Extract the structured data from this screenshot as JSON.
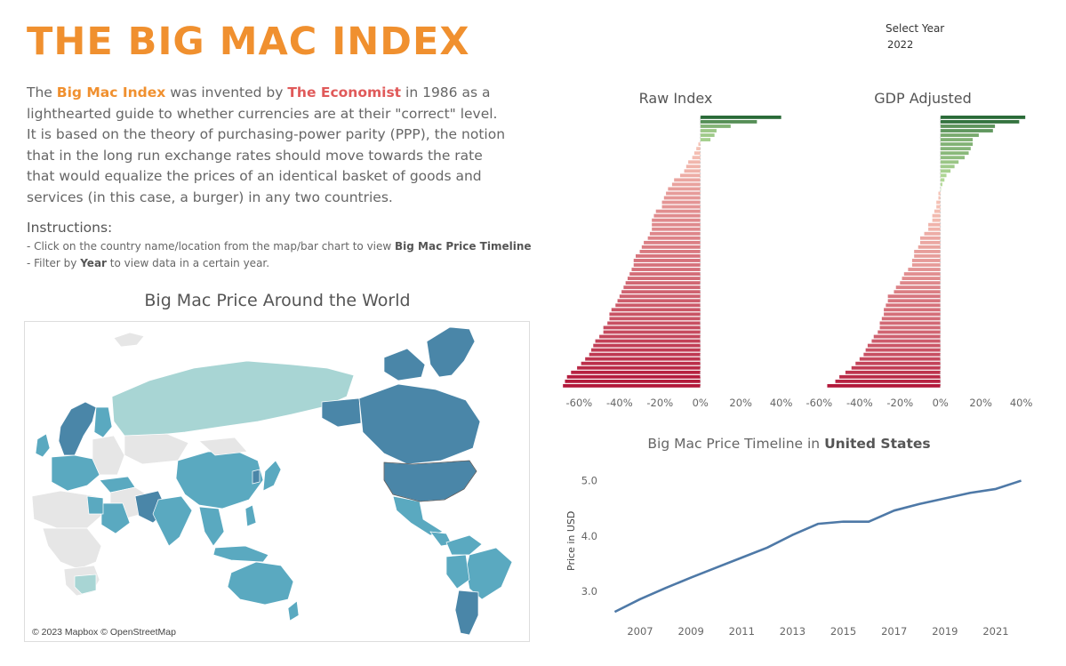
{
  "header": {
    "title": "THE BIG MAC INDEX",
    "intro_1": "The ",
    "intro_hl_1": "Big Mac Index",
    "intro_2": " was invented by ",
    "intro_hl_2": "The Economist",
    "intro_3": " in 1986 as a lighthearted guide to whether currencies are at their \"correct\" level. It is based on the theory of purchasing-power parity (PPP), the notion that in the long run exchange rates should move towards the rate that would equalize the prices of an identical basket of goods and services (in this case, a burger) in any two countries."
  },
  "instructions": {
    "heading": "Instructions:",
    "line1_text": "- Click on the country name/location from the map/bar chart to view ",
    "line1_bold": "Big Mac Price Timeline",
    "line2_prefix": "- Filter by ",
    "line2_bold": "Year",
    "line2_suffix": " to view data in a certain year."
  },
  "filter": {
    "label": "Select Year",
    "value": "2022"
  },
  "map": {
    "title": "Big Mac Price Around the World",
    "credit": "© 2023 Mapbox © OpenStreetMap",
    "colors": {
      "land_no_data": "#e6e6e6",
      "low": "#a8d5d4",
      "mid": "#5aa9c0",
      "high": "#4a86a8"
    }
  },
  "chart_data": [
    {
      "type": "bar",
      "title": "Raw Index",
      "orientation": "horizontal",
      "xlim": [
        -65,
        45
      ],
      "x_ticks": [
        "-60%",
        "-40%",
        "-20%",
        "0%",
        "20%",
        "40%"
      ],
      "values": [
        40,
        28,
        15,
        8,
        7,
        5,
        -1,
        -2,
        -3,
        -4,
        -6,
        -7,
        -8,
        -10,
        -13,
        -14,
        -16,
        -17,
        -18,
        -19,
        -19,
        -22,
        -23,
        -24,
        -24,
        -24,
        -25,
        -26,
        -28,
        -29,
        -30,
        -32,
        -33,
        -33,
        -34,
        -35,
        -36,
        -37,
        -38,
        -39,
        -40,
        -41,
        -42,
        -44,
        -45,
        -45,
        -46,
        -48,
        -48,
        -50,
        -52,
        -53,
        -54,
        -55,
        -57,
        -59,
        -61,
        -64,
        -66,
        -67,
        -68
      ]
    },
    {
      "type": "bar",
      "title": "GDP Adjusted",
      "orientation": "horizontal",
      "xlim": [
        -65,
        45
      ],
      "x_ticks": [
        "-60%",
        "-40%",
        "-20%",
        "0%",
        "20%",
        "40%"
      ],
      "values": [
        42,
        39,
        27,
        26,
        19,
        16,
        16,
        15,
        14,
        12,
        9,
        7,
        5,
        3,
        2,
        1,
        0,
        -1,
        -1,
        -2,
        -2,
        -3,
        -4,
        -4,
        -6,
        -6,
        -8,
        -10,
        -10,
        -11,
        -13,
        -13,
        -14,
        -14,
        -16,
        -18,
        -19,
        -20,
        -22,
        -23,
        -26,
        -26,
        -27,
        -28,
        -28,
        -29,
        -30,
        -30,
        -31,
        -33,
        -34,
        -36,
        -37,
        -38,
        -40,
        -42,
        -44,
        -47,
        -50,
        -52,
        -56
      ]
    },
    {
      "type": "line",
      "title_prefix": "Big Mac Price Timeline in ",
      "title_country": "United States",
      "ylabel": "Price in USD",
      "ylim": [
        2.6,
        5.25
      ],
      "y_ticks": [
        "3.0",
        "4.0",
        "5.0"
      ],
      "x_ticks": [
        "2007",
        "2009",
        "2011",
        "2013",
        "2015",
        "2017",
        "2019",
        "2021"
      ],
      "x": [
        2006,
        2007,
        2008,
        2009,
        2010,
        2011,
        2012,
        2013,
        2014,
        2015,
        2016,
        2017,
        2018,
        2019,
        2020,
        2021,
        2022
      ],
      "y": [
        2.63,
        2.86,
        3.06,
        3.25,
        3.43,
        3.61,
        3.79,
        4.02,
        4.22,
        4.26,
        4.26,
        4.46,
        4.58,
        4.68,
        4.78,
        4.85,
        5.0
      ],
      "color": "#4e79a7"
    }
  ]
}
